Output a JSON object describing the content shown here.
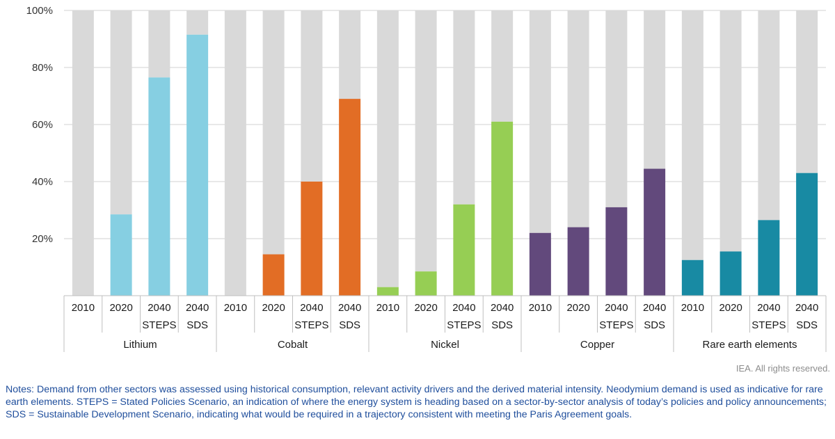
{
  "chart_data": {
    "type": "bar",
    "stacked_percent": true,
    "ylim": [
      0,
      100
    ],
    "yticks": [
      "20%",
      "40%",
      "60%",
      "80%",
      "100%"
    ],
    "grid": "horizontal",
    "background_series_color": "#d9d9d9",
    "groups": [
      {
        "name": "Lithium",
        "color": "#86cfe2",
        "bars": [
          {
            "year": "2010",
            "scenario": "",
            "value": 0
          },
          {
            "year": "2020",
            "scenario": "",
            "value": 28.5
          },
          {
            "year": "2040",
            "scenario": "STEPS",
            "value": 76.5
          },
          {
            "year": "2040",
            "scenario": "SDS",
            "value": 91.5
          }
        ]
      },
      {
        "name": "Cobalt",
        "color": "#e26d25",
        "bars": [
          {
            "year": "2010",
            "scenario": "",
            "value": 0
          },
          {
            "year": "2020",
            "scenario": "",
            "value": 14.5
          },
          {
            "year": "2040",
            "scenario": "STEPS",
            "value": 40
          },
          {
            "year": "2040",
            "scenario": "SDS",
            "value": 69
          }
        ]
      },
      {
        "name": "Nickel",
        "color": "#96ce54",
        "bars": [
          {
            "year": "2010",
            "scenario": "",
            "value": 3
          },
          {
            "year": "2020",
            "scenario": "",
            "value": 8.5
          },
          {
            "year": "2040",
            "scenario": "STEPS",
            "value": 32
          },
          {
            "year": "2040",
            "scenario": "SDS",
            "value": 61
          }
        ]
      },
      {
        "name": "Copper",
        "color": "#62497c",
        "bars": [
          {
            "year": "2010",
            "scenario": "",
            "value": 22
          },
          {
            "year": "2020",
            "scenario": "",
            "value": 24
          },
          {
            "year": "2040",
            "scenario": "STEPS",
            "value": 31
          },
          {
            "year": "2040",
            "scenario": "SDS",
            "value": 44.5
          }
        ]
      },
      {
        "name": "Rare earth elements",
        "color": "#188aa3",
        "bars": [
          {
            "year": "2010",
            "scenario": "",
            "value": 12.5
          },
          {
            "year": "2020",
            "scenario": "",
            "value": 15.5
          },
          {
            "year": "2040",
            "scenario": "STEPS",
            "value": 26.5
          },
          {
            "year": "2040",
            "scenario": "SDS",
            "value": 43
          }
        ]
      }
    ]
  },
  "copyright": "IEA. All rights reserved.",
  "notes": "Notes: Demand from other sectors was assessed using historical consumption, relevant activity drivers and the derived material intensity. Neodymium demand is used as indicative for rare earth elements. STEPS = Stated Policies Scenario, an indication of where the energy system is heading based on a sector-by-sector analysis of today’s policies and policy announcements; SDS = Sustainable Development Scenario, indicating what would be required in a trajectory consistent with meeting the Paris Agreement goals."
}
